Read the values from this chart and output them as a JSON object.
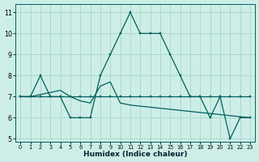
{
  "xlabel": "Humidex (Indice chaleur)",
  "bg_color": "#cceee6",
  "line_color": "#006060",
  "grid_color": "#aad4cc",
  "xlim": [
    -0.5,
    23.5
  ],
  "ylim": [
    4.85,
    11.4
  ],
  "xticks": [
    0,
    1,
    2,
    3,
    4,
    5,
    6,
    7,
    8,
    9,
    10,
    11,
    12,
    13,
    14,
    15,
    16,
    17,
    18,
    19,
    20,
    21,
    22,
    23
  ],
  "yticks": [
    5,
    6,
    7,
    8,
    9,
    10,
    11
  ],
  "s1y": [
    7,
    7,
    8,
    7,
    7,
    6,
    6,
    6,
    8,
    9,
    10,
    11,
    10,
    10,
    10,
    9,
    8,
    7,
    7,
    6,
    7,
    5,
    6,
    6
  ],
  "s2y": [
    7,
    7,
    7,
    7,
    7,
    7,
    7,
    7,
    7,
    7,
    7,
    7,
    7,
    7,
    7,
    7,
    7,
    7,
    7,
    7,
    7,
    7,
    7,
    7
  ],
  "s3y": [
    7.0,
    7.0,
    7.1,
    7.2,
    7.3,
    7.0,
    6.8,
    6.7,
    7.5,
    7.7,
    6.7,
    6.6,
    6.55,
    6.5,
    6.45,
    6.4,
    6.35,
    6.3,
    6.25,
    6.2,
    6.15,
    6.1,
    6.05,
    6.0
  ]
}
